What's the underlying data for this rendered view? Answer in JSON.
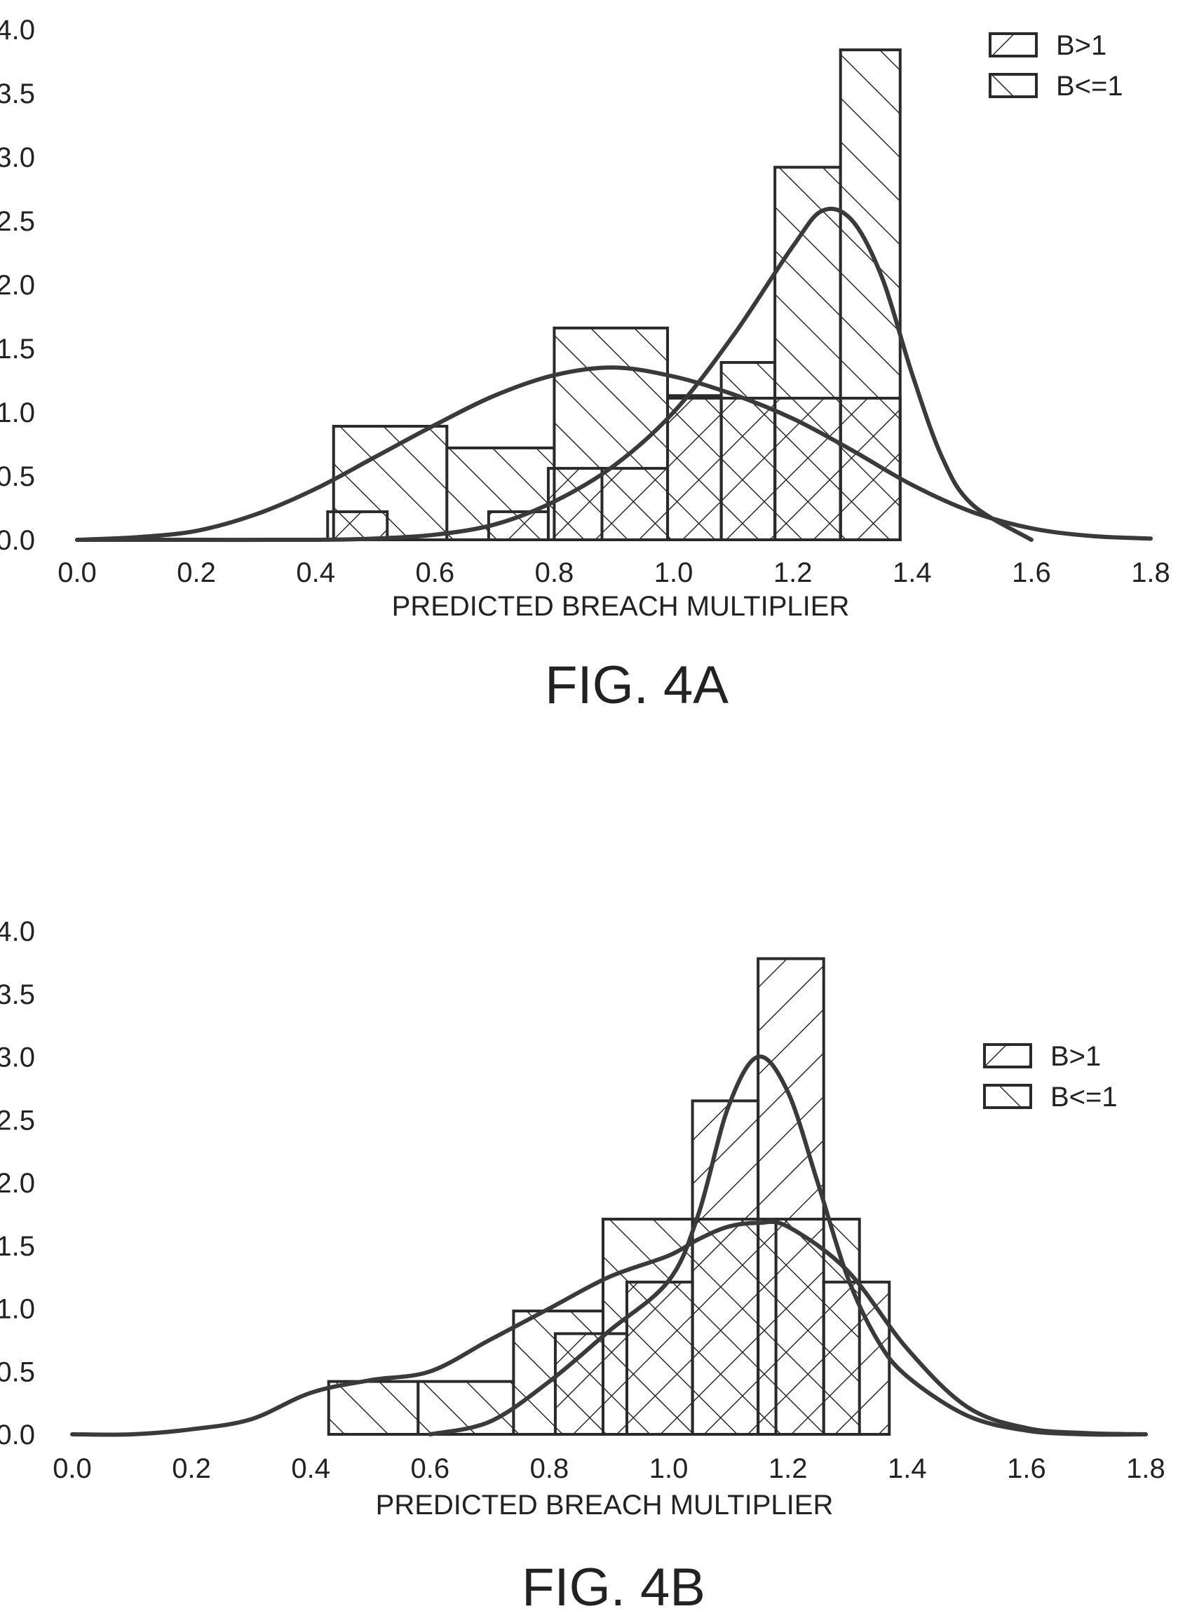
{
  "chart_data": [
    {
      "type": "histogram",
      "caption": "FIG. 4A",
      "xlabel": "PREDICTED BREACH MULTIPLIER",
      "ylabel": "",
      "xlim": [
        0.0,
        1.8
      ],
      "ylim": [
        0.0,
        4.0
      ],
      "x_ticks": [
        "0.0",
        "0.2",
        "0.4",
        "0.6",
        "0.8",
        "1.0",
        "1.2",
        "1.4",
        "1.6",
        "1.8"
      ],
      "y_ticks": [
        "0.0",
        "0.5",
        "1.0",
        "1.5",
        "2.0",
        "2.5",
        "3.0",
        "3.5",
        "4.0"
      ],
      "legend_position": "top-right",
      "series": [
        {
          "name": "B>1",
          "hatch": "back-diagonal",
          "bins": [
            {
              "x0": 0.42,
              "x1": 0.52,
              "y": 0.22
            },
            {
              "x0": 0.69,
              "x1": 0.79,
              "y": 0.22
            },
            {
              "x0": 0.79,
              "x1": 0.88,
              "y": 0.56
            },
            {
              "x0": 0.88,
              "x1": 0.99,
              "y": 0.56
            },
            {
              "x0": 0.99,
              "x1": 1.08,
              "y": 1.11
            },
            {
              "x0": 1.08,
              "x1": 1.17,
              "y": 1.11
            },
            {
              "x0": 1.17,
              "x1": 1.28,
              "y": 1.11
            },
            {
              "x0": 1.28,
              "x1": 1.38,
              "y": 1.11
            }
          ],
          "density": {
            "x": [
              0.0,
              0.2,
              0.4,
              0.5,
              0.6,
              0.7,
              0.8,
              0.9,
              1.0,
              1.1,
              1.2,
              1.25,
              1.3,
              1.35,
              1.4,
              1.45,
              1.5,
              1.6
            ],
            "y": [
              0.0,
              0.0,
              0.0,
              0.01,
              0.04,
              0.12,
              0.3,
              0.58,
              1.0,
              1.6,
              2.3,
              2.58,
              2.5,
              2.05,
              1.3,
              0.65,
              0.28,
              0.0
            ]
          }
        },
        {
          "name": "B<=1",
          "hatch": "forward-diagonal",
          "bins": [
            {
              "x0": 0.43,
              "x1": 0.62,
              "y": 0.89
            },
            {
              "x0": 0.62,
              "x1": 0.8,
              "y": 0.72
            },
            {
              "x0": 0.8,
              "x1": 0.99,
              "y": 1.66
            },
            {
              "x0": 0.99,
              "x1": 1.08,
              "y": 1.13
            },
            {
              "x0": 1.08,
              "x1": 1.17,
              "y": 1.39
            },
            {
              "x0": 1.17,
              "x1": 1.28,
              "y": 2.92
            },
            {
              "x0": 1.28,
              "x1": 1.38,
              "y": 3.84
            }
          ],
          "density": {
            "x": [
              0.0,
              0.1,
              0.2,
              0.3,
              0.4,
              0.5,
              0.6,
              0.7,
              0.8,
              0.9,
              1.0,
              1.1,
              1.2,
              1.3,
              1.4,
              1.5,
              1.6,
              1.7,
              1.8
            ],
            "y": [
              0.0,
              0.02,
              0.07,
              0.2,
              0.4,
              0.65,
              0.9,
              1.13,
              1.29,
              1.35,
              1.28,
              1.14,
              0.95,
              0.7,
              0.43,
              0.22,
              0.09,
              0.03,
              0.01
            ]
          }
        }
      ]
    },
    {
      "type": "histogram",
      "caption": "FIG. 4B",
      "xlabel": "PREDICTED BREACH MULTIPLIER",
      "ylabel": "",
      "xlim": [
        0.0,
        1.8
      ],
      "ylim": [
        0.0,
        4.0
      ],
      "x_ticks": [
        "0.0",
        "0.2",
        "0.4",
        "0.6",
        "0.8",
        "1.0",
        "1.2",
        "1.4",
        "1.6",
        "1.8"
      ],
      "y_ticks": [
        "0.0",
        "0.5",
        "1.0",
        "1.5",
        "2.0",
        "2.5",
        "3.0",
        "3.5",
        "4.0"
      ],
      "legend_position": "top-right",
      "series": [
        {
          "name": "B>1",
          "hatch": "back-diagonal",
          "bins": [
            {
              "x0": 0.81,
              "x1": 0.93,
              "y": 0.8
            },
            {
              "x0": 0.93,
              "x1": 1.04,
              "y": 1.21
            },
            {
              "x0": 1.04,
              "x1": 1.15,
              "y": 2.65
            },
            {
              "x0": 1.15,
              "x1": 1.26,
              "y": 3.78
            },
            {
              "x0": 1.26,
              "x1": 1.37,
              "y": 1.21
            }
          ],
          "density": {
            "x": [
              0.6,
              0.7,
              0.8,
              0.9,
              1.0,
              1.05,
              1.1,
              1.15,
              1.2,
              1.25,
              1.3,
              1.35,
              1.4,
              1.5,
              1.6,
              1.7,
              1.8
            ],
            "y": [
              0.0,
              0.1,
              0.42,
              0.82,
              1.22,
              1.75,
              2.6,
              3.0,
              2.72,
              2.0,
              1.25,
              0.75,
              0.46,
              0.15,
              0.03,
              0.0,
              0.0
            ]
          }
        },
        {
          "name": "B<=1",
          "hatch": "forward-diagonal",
          "bins": [
            {
              "x0": 0.43,
              "x1": 0.58,
              "y": 0.42
            },
            {
              "x0": 0.58,
              "x1": 0.74,
              "y": 0.42
            },
            {
              "x0": 0.74,
              "x1": 0.89,
              "y": 0.98
            },
            {
              "x0": 0.89,
              "x1": 1.04,
              "y": 1.71
            },
            {
              "x0": 1.04,
              "x1": 1.18,
              "y": 1.71
            },
            {
              "x0": 1.18,
              "x1": 1.32,
              "y": 1.71
            }
          ],
          "density": {
            "x": [
              0.0,
              0.1,
              0.2,
              0.3,
              0.4,
              0.5,
              0.6,
              0.7,
              0.8,
              0.9,
              1.0,
              1.05,
              1.1,
              1.15,
              1.2,
              1.3,
              1.4,
              1.5,
              1.6,
              1.7,
              1.8
            ],
            "y": [
              0.0,
              0.0,
              0.04,
              0.12,
              0.33,
              0.43,
              0.5,
              0.75,
              1.0,
              1.25,
              1.42,
              1.55,
              1.65,
              1.68,
              1.65,
              1.3,
              0.68,
              0.22,
              0.05,
              0.01,
              0.0
            ]
          }
        }
      ]
    }
  ]
}
